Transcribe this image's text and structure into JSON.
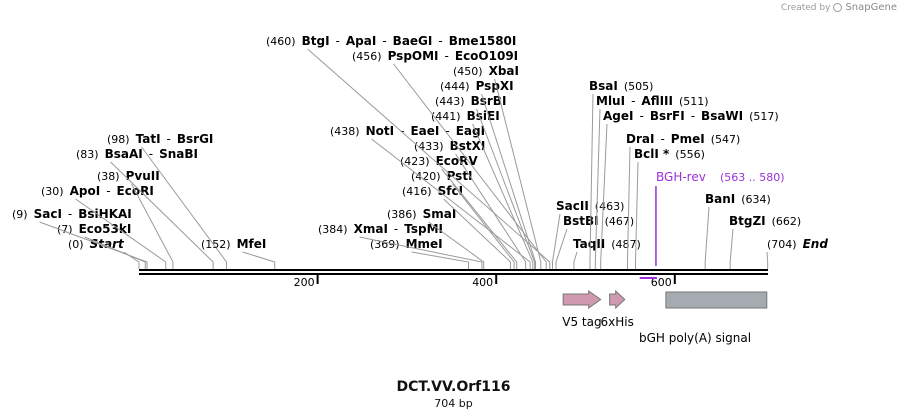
{
  "credit": {
    "created_by": "Created by",
    "brand": "SnapGene"
  },
  "map": {
    "name": "DCT.VV.Orf116",
    "length_label": "704 bp",
    "length": 704,
    "ticks": [
      200,
      400,
      600
    ]
  },
  "sites": [
    {
      "id": "start",
      "pos_label": "(0)",
      "names": [
        "Start"
      ],
      "pos": 0,
      "italic": true
    },
    {
      "id": "eco53ki",
      "pos_label": "(7)",
      "names": [
        "Eco53kI"
      ],
      "pos": 7
    },
    {
      "id": "saci",
      "pos_label": "(9)",
      "names": [
        "SacI",
        "BsiHKAI"
      ],
      "pos": 9
    },
    {
      "id": "apoi",
      "pos_label": "(30)",
      "names": [
        "ApoI",
        "EcoRI"
      ],
      "pos": 30
    },
    {
      "id": "pvuii",
      "pos_label": "(38)",
      "names": [
        "PvuII"
      ],
      "pos": 38
    },
    {
      "id": "bsaai",
      "pos_label": "(83)",
      "names": [
        "BsaAI",
        "SnaBI"
      ],
      "pos": 83
    },
    {
      "id": "tati",
      "pos_label": "(98)",
      "names": [
        "TatI",
        "BsrGI"
      ],
      "pos": 98
    },
    {
      "id": "mfei",
      "pos_label": "(152)",
      "names": [
        "MfeI"
      ],
      "pos": 152
    },
    {
      "id": "mmei",
      "pos_label": "(369)",
      "names": [
        "MmeI"
      ],
      "pos": 369
    },
    {
      "id": "xmai",
      "pos_label": "(384)",
      "names": [
        "XmaI",
        "TspMI"
      ],
      "pos": 384
    },
    {
      "id": "smai",
      "pos_label": "(386)",
      "names": [
        "SmaI"
      ],
      "pos": 386
    },
    {
      "id": "sfci",
      "pos_label": "(416)",
      "names": [
        "SfcI"
      ],
      "pos": 416
    },
    {
      "id": "psti",
      "pos_label": "(420)",
      "names": [
        "PstI"
      ],
      "pos": 420
    },
    {
      "id": "ecorv",
      "pos_label": "(423)",
      "names": [
        "EcoRV"
      ],
      "pos": 423
    },
    {
      "id": "bstxi",
      "pos_label": "(433)",
      "names": [
        "BstXI"
      ],
      "pos": 433
    },
    {
      "id": "noti",
      "pos_label": "(438)",
      "names": [
        "NotI",
        "EaeI",
        "EagI"
      ],
      "pos": 438
    },
    {
      "id": "bsiei",
      "pos_label": "(441)",
      "names": [
        "BsiEI"
      ],
      "pos": 441
    },
    {
      "id": "bsrbi",
      "pos_label": "(443)",
      "names": [
        "BsrBI"
      ],
      "pos": 443
    },
    {
      "id": "pspxi",
      "pos_label": "(444)",
      "names": [
        "PspXI"
      ],
      "pos": 444
    },
    {
      "id": "xbai",
      "pos_label": "(450)",
      "names": [
        "XbaI"
      ],
      "pos": 450
    },
    {
      "id": "psppmi",
      "pos_label": "(456)",
      "names": [
        "PspOMI",
        "EcoO109I"
      ],
      "pos": 456
    },
    {
      "id": "btgi",
      "pos_label": "(460)",
      "names": [
        "BtgI",
        "ApaI",
        "BaeGI",
        "Bme1580I"
      ],
      "pos": 460
    },
    {
      "id": "sacii",
      "pos_label": "(463)",
      "names": [
        "SacII"
      ],
      "pos": 463
    },
    {
      "id": "bstbi",
      "pos_label": "(467)",
      "names": [
        "BstBI"
      ],
      "pos": 467
    },
    {
      "id": "taqii",
      "pos_label": "(487)",
      "names": [
        "TaqII"
      ],
      "pos": 487
    },
    {
      "id": "bsai",
      "pos_label": "(505)",
      "names": [
        "BsaI"
      ],
      "pos": 505
    },
    {
      "id": "mlui",
      "pos_label": "(511)",
      "names": [
        "MluI",
        "AflIII"
      ],
      "pos": 511
    },
    {
      "id": "agei",
      "pos_label": "(517)",
      "names": [
        "AgeI",
        "BsrFI",
        "BsaWI"
      ],
      "pos": 517
    },
    {
      "id": "drai",
      "pos_label": "(547)",
      "names": [
        "DraI",
        "PmeI"
      ],
      "pos": 547
    },
    {
      "id": "bcli",
      "pos_label": "(556)",
      "names": [
        "BclI *"
      ],
      "pos": 556
    },
    {
      "id": "bani",
      "pos_label": "(634)",
      "names": [
        "BanI"
      ],
      "pos": 634
    },
    {
      "id": "btgzi",
      "pos_label": "(662)",
      "names": [
        "BtgZI"
      ],
      "pos": 662
    },
    {
      "id": "end",
      "pos_label": "(704)",
      "names": [
        "End"
      ],
      "pos": 704,
      "italic": true
    }
  ],
  "primer": {
    "label": "BGH-rev",
    "range_label": "(563 .. 580)",
    "start": 563,
    "end": 580,
    "color": "#9b30d9"
  },
  "features": [
    {
      "id": "v5",
      "label": "V5 tag",
      "start": 475,
      "end": 517,
      "type": "arrow",
      "color": "#cf9aae"
    },
    {
      "id": "his",
      "label": "6xHis",
      "start": 527,
      "end": 544,
      "type": "arrow",
      "color": "#cf9aae"
    },
    {
      "id": "bgh",
      "label": "bGH poly(A) signal",
      "start": 590,
      "end": 703,
      "type": "box",
      "color": "#a6abb2"
    }
  ]
}
